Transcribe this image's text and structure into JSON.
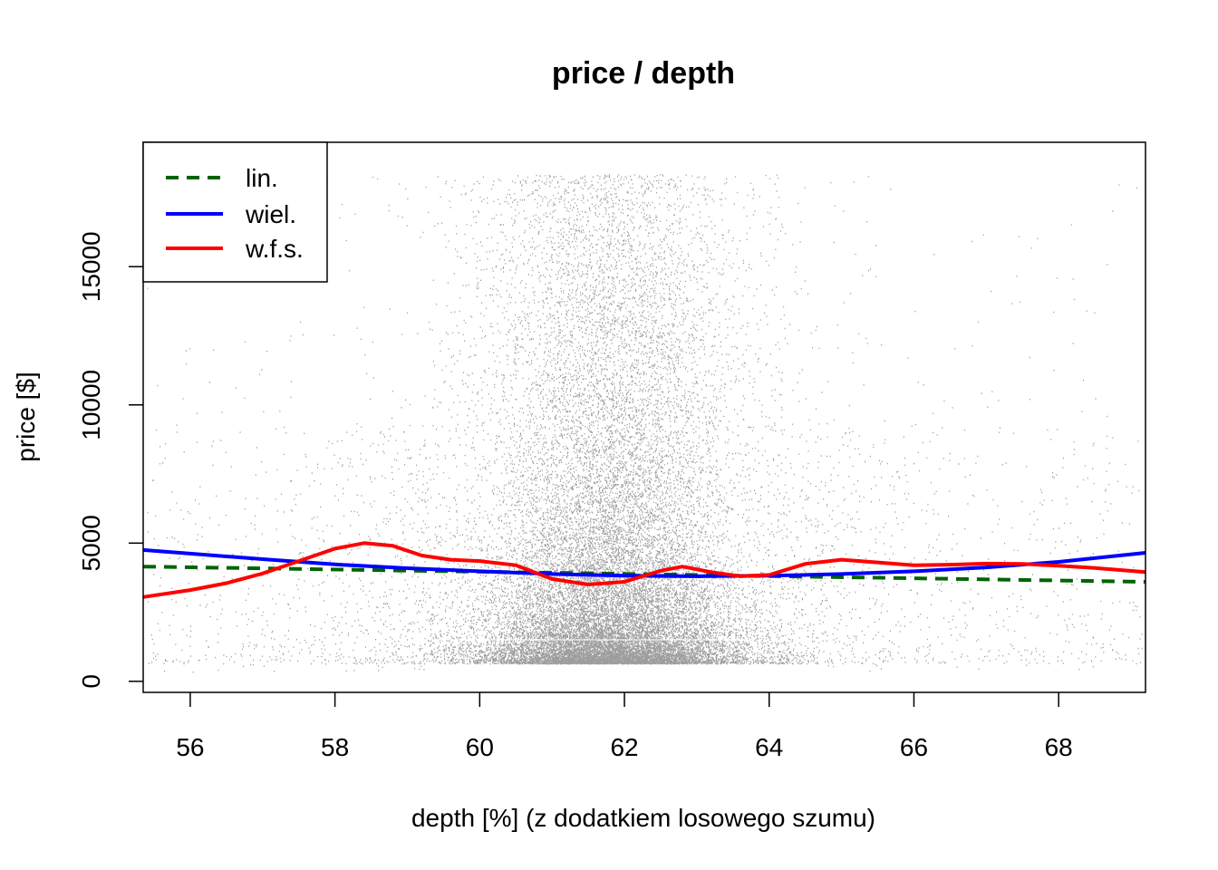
{
  "chart_data": {
    "type": "scatter",
    "title": "price / depth",
    "xlabel": "depth [%] (z dodatkiem losowego szumu)",
    "ylabel": "price [$]",
    "xlim": [
      55.35,
      69.2
    ],
    "ylim": [
      -400,
      19500
    ],
    "x_ticks": [
      56,
      58,
      60,
      62,
      64,
      66,
      68
    ],
    "y_ticks": [
      0,
      5000,
      10000,
      15000
    ],
    "x_tick_labels": [
      "56",
      "58",
      "60",
      "62",
      "64",
      "66",
      "68"
    ],
    "y_tick_labels": [
      "0",
      "5000",
      "10000",
      "15000"
    ],
    "grid": false,
    "legend_position": "top-left",
    "legend": [
      {
        "label": "lin.",
        "color": "#006400",
        "dash": true
      },
      {
        "label": "wiel.",
        "color": "#0000ff",
        "dash": false
      },
      {
        "label": "w.f.s.",
        "color": "#ff0000",
        "dash": false
      }
    ],
    "scatter_points": "approx. 54000 observations (price vs depth with noise), densest near depth 61-63 and price below 5000",
    "series": [
      {
        "name": "lin.",
        "color": "#006400",
        "x": [
          55.35,
          69.2
        ],
        "y": [
          4150,
          3600
        ]
      },
      {
        "name": "wiel.",
        "color": "#0000ff",
        "x": [
          55.35,
          56,
          57,
          58,
          59,
          60,
          61,
          62,
          63,
          64,
          65,
          66,
          67,
          68,
          69.2
        ],
        "y": [
          4750,
          4620,
          4420,
          4230,
          4090,
          3980,
          3880,
          3820,
          3800,
          3820,
          3880,
          3980,
          4120,
          4320,
          4650
        ]
      },
      {
        "name": "w.f.s.",
        "color": "#ff0000",
        "x": [
          55.35,
          56,
          56.5,
          57,
          57.5,
          58,
          58.4,
          58.8,
          59.2,
          59.6,
          60,
          60.5,
          61,
          61.5,
          62,
          62.5,
          62.8,
          63.2,
          63.6,
          64,
          64.5,
          65,
          65.5,
          66,
          66.5,
          67,
          67.5,
          68,
          68.5,
          69.2
        ],
        "y": [
          3050,
          3300,
          3550,
          3900,
          4350,
          4800,
          5000,
          4900,
          4550,
          4400,
          4350,
          4200,
          3700,
          3500,
          3600,
          4000,
          4150,
          3950,
          3800,
          3850,
          4250,
          4400,
          4300,
          4200,
          4220,
          4260,
          4250,
          4180,
          4100,
          3950
        ]
      }
    ]
  }
}
